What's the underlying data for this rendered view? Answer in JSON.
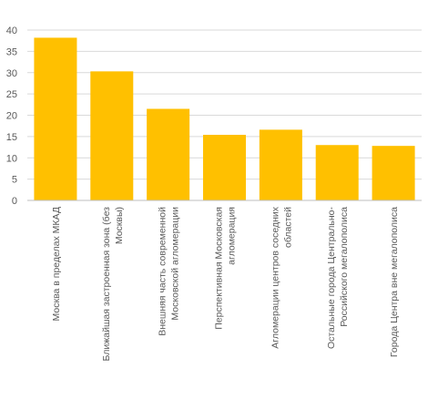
{
  "chart_data": {
    "type": "bar",
    "categories": [
      [
        "Москва в пределах МКАД"
      ],
      [
        "Ближайшая застроенная зона (без",
        "Москвы)"
      ],
      [
        "Внешняя часть современной",
        "Московской агломерации"
      ],
      [
        "Перспективная Московская",
        "агломерация"
      ],
      [
        "Агломерации центров соседних",
        "областей"
      ],
      [
        "Остальные города Центрально-",
        "Российского мегалополиса"
      ],
      [
        "Города Центра вне мегалополиса"
      ]
    ],
    "values": [
      38.2,
      30.3,
      21.5,
      15.4,
      16.6,
      13.0,
      12.8
    ],
    "ylim": [
      0,
      40
    ],
    "yticks": [
      "0",
      "5",
      "10",
      "15",
      "20",
      "25",
      "30",
      "35",
      "40"
    ],
    "grid": true,
    "bar_color": "#FFC000",
    "grid_color": "#D9D9D9",
    "axis_color": "#BFBFBF",
    "title": "",
    "xlabel": "",
    "ylabel": ""
  }
}
